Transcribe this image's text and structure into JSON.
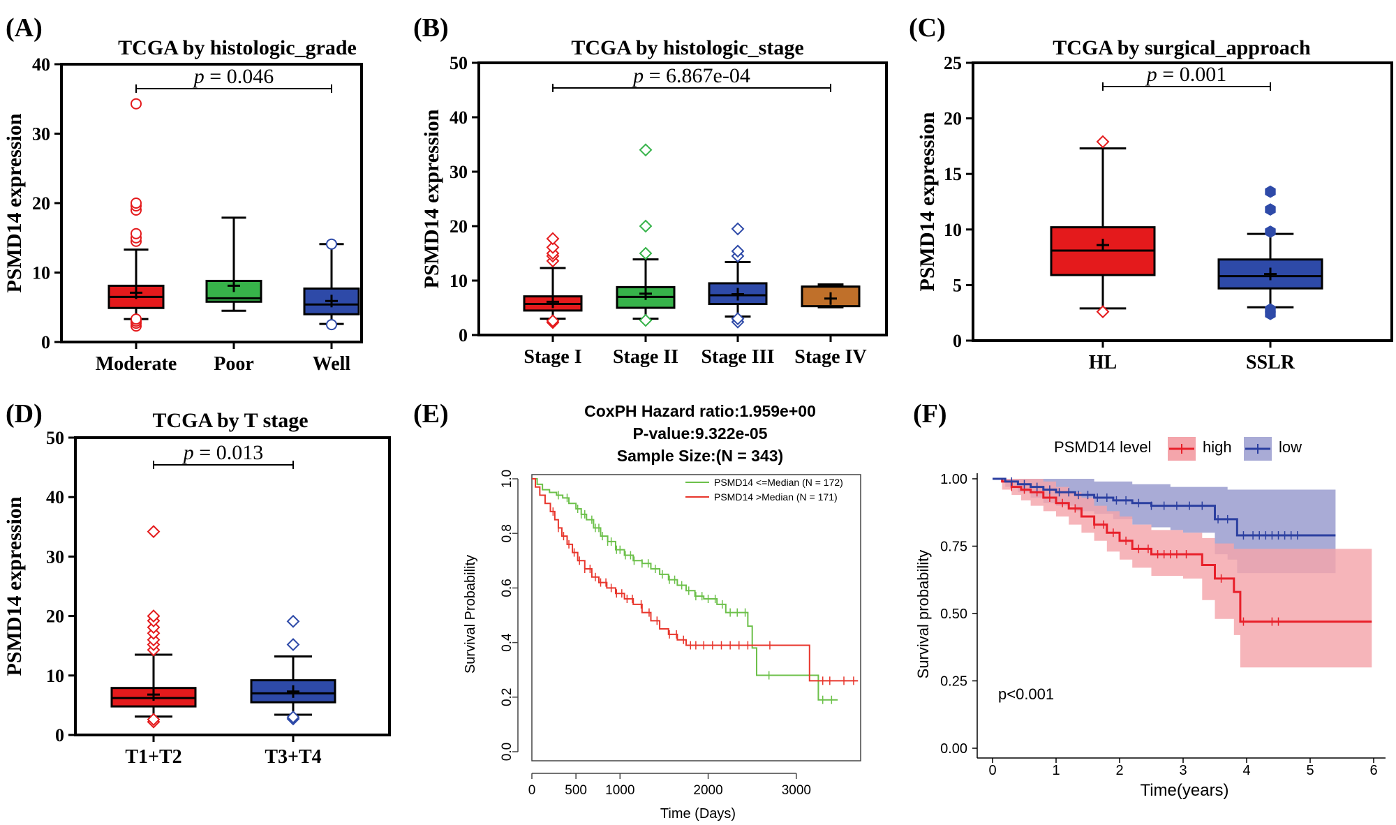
{
  "panel_labels": {
    "A": "(A)",
    "B": "(B)",
    "C": "(C)",
    "D": "(D)",
    "E": "(E)",
    "F": "(F)"
  },
  "colors": {
    "red": "#e41a1c",
    "green": "#37b34a",
    "blue": "#2e4aa8",
    "orange": "#c0702a",
    "km_green": "#6cc04a",
    "km_red": "#e8362c",
    "f_red": "#e8202a",
    "f_blue": "#2b3fa0",
    "f_red_band": "#f4a5ab",
    "f_blue_band": "#a9abd6",
    "f_overlap": "#9a72b4"
  },
  "chart_data": [
    {
      "id": "A",
      "type": "box",
      "title": "TCGA by histologic_grade",
      "ylabel": "PSMD14 expression",
      "ylim": [
        0,
        40
      ],
      "yticks": [
        0,
        10,
        20,
        30,
        40
      ],
      "pvalue_p": "p",
      "pvalue_eq": "=",
      "pvalue": "0.046",
      "bracket": [
        0,
        2
      ],
      "categories": [
        "Moderate",
        "Poor",
        "Well"
      ],
      "boxes": [
        {
          "name": "Moderate",
          "color": "red",
          "wlo": 3.3,
          "q1": 4.9,
          "median": 6.5,
          "q3": 8.1,
          "whi": 13.3,
          "mean": 7.1,
          "outliers": [
            2.3,
            2.7,
            3.0,
            3.3,
            14.5,
            15.0,
            15.6,
            19.0,
            19.6,
            20.0,
            34.3
          ],
          "marker": "circle"
        },
        {
          "name": "Poor",
          "color": "green",
          "wlo": 4.5,
          "q1": 5.8,
          "median": 6.3,
          "q3": 8.8,
          "whi": 17.9,
          "mean": 8.1,
          "outliers": [],
          "marker": "circle"
        },
        {
          "name": "Well",
          "color": "blue",
          "wlo": 2.6,
          "q1": 4.0,
          "median": 5.4,
          "q3": 7.7,
          "whi": 14.1,
          "mean": 5.9,
          "outliers": [
            2.5,
            14.1
          ],
          "marker": "circle"
        }
      ]
    },
    {
      "id": "B",
      "type": "box",
      "title": "TCGA by histologic_stage",
      "ylabel": "PSMD14 expression",
      "ylim": [
        0,
        50
      ],
      "yticks": [
        0,
        10,
        20,
        30,
        40,
        50
      ],
      "pvalue_p": "p",
      "pvalue_eq": "=",
      "pvalue": "6.867e-04",
      "bracket": [
        0,
        3
      ],
      "categories": [
        "Stage I",
        "Stage II",
        "Stage III",
        "Stage IV"
      ],
      "boxes": [
        {
          "name": "Stage I",
          "color": "red",
          "wlo": 3.0,
          "q1": 4.5,
          "median": 5.7,
          "q3": 7.1,
          "whi": 12.3,
          "mean": 6.1,
          "outliers": [
            2.3,
            2.6,
            13.6,
            14.5,
            15.0,
            16.1,
            17.7
          ],
          "marker": "diamond"
        },
        {
          "name": "Stage II",
          "color": "green",
          "wlo": 3.0,
          "q1": 5.0,
          "median": 7.0,
          "q3": 8.8,
          "whi": 13.9,
          "mean": 7.6,
          "outliers": [
            2.7,
            15.0,
            20.0,
            34.0
          ],
          "marker": "diamond"
        },
        {
          "name": "Stage III",
          "color": "blue",
          "wlo": 3.4,
          "q1": 5.7,
          "median": 7.3,
          "q3": 9.5,
          "whi": 13.4,
          "mean": 7.5,
          "outliers": [
            2.4,
            3.0,
            14.5,
            15.4,
            19.5
          ],
          "marker": "diamond"
        },
        {
          "name": "Stage IV",
          "color": "orange",
          "wlo": 5.1,
          "q1": 5.3,
          "median": 8.9,
          "q3": 8.9,
          "whi": 9.3,
          "mean": 6.7,
          "outliers": [],
          "marker": "diamond"
        }
      ]
    },
    {
      "id": "C",
      "type": "box",
      "title": "TCGA by surgical_approach",
      "ylabel": "PSMD14 expression",
      "ylim": [
        0,
        25
      ],
      "yticks": [
        0,
        5,
        10,
        15,
        20,
        25
      ],
      "pvalue_p": "p",
      "pvalue_eq": "=",
      "pvalue": "0.001",
      "bracket": [
        0,
        1
      ],
      "categories": [
        "HL",
        "SSLR"
      ],
      "boxes": [
        {
          "name": "HL",
          "color": "red",
          "wlo": 2.9,
          "q1": 5.9,
          "median": 8.1,
          "q3": 10.2,
          "whi": 17.3,
          "mean": 8.6,
          "outliers": [
            2.6,
            17.9
          ],
          "marker": "diamond"
        },
        {
          "name": "SSLR",
          "color": "blue",
          "wlo": 3.0,
          "q1": 4.7,
          "median": 5.8,
          "q3": 7.3,
          "whi": 9.6,
          "mean": 6.0,
          "outliers": [
            2.4,
            2.8,
            9.8,
            11.8,
            13.4
          ],
          "marker": "hex"
        }
      ]
    },
    {
      "id": "D",
      "type": "box",
      "title": "TCGA by T stage",
      "ylabel": "PSMD14 expression",
      "ylim": [
        0,
        50
      ],
      "yticks": [
        0,
        10,
        20,
        30,
        40,
        50
      ],
      "pvalue_p": "p",
      "pvalue_eq": "=",
      "pvalue": "0.013",
      "bracket": [
        0,
        1
      ],
      "categories": [
        "T1+T2",
        "T3+T4"
      ],
      "boxes": [
        {
          "name": "T1+T2",
          "color": "red",
          "wlo": 3.1,
          "q1": 4.8,
          "median": 6.2,
          "q3": 7.9,
          "whi": 13.5,
          "mean": 6.8,
          "outliers": [
            2.2,
            2.6,
            14.3,
            15.2,
            16.0,
            17.1,
            18.1,
            19.2,
            20.0,
            34.2
          ],
          "marker": "diamond"
        },
        {
          "name": "T3+T4",
          "color": "blue",
          "wlo": 3.4,
          "q1": 5.5,
          "median": 7.0,
          "q3": 9.2,
          "whi": 13.2,
          "mean": 7.3,
          "outliers": [
            2.7,
            3.0,
            15.2,
            19.1
          ],
          "marker": "diamond"
        }
      ]
    },
    {
      "id": "E",
      "type": "line",
      "subtype": "kaplan-meier",
      "title_lines": [
        "CoxPH Hazard ratio:1.959e+00",
        "P-value:9.322e-05",
        "Sample Size:(N = 343)"
      ],
      "xlabel": "Time (Days)",
      "ylabel": "Survival Probability",
      "xlim": [
        0,
        3700
      ],
      "ylim": [
        0,
        1
      ],
      "xticks": [
        0,
        500,
        1000,
        2000,
        3000
      ],
      "yticks": [
        "0.0",
        "0.2",
        "0.4",
        "0.6",
        "0.8",
        "1.0"
      ],
      "legend": [
        "PSMD14 <=Median (N = 172)",
        "PSMD14 >Median (N = 171)"
      ],
      "series": [
        {
          "name": "PSMD14 <=Median (N = 172)",
          "color": "km_green",
          "x": [
            0,
            60,
            120,
            200,
            280,
            350,
            420,
            500,
            560,
            620,
            700,
            780,
            860,
            950,
            1050,
            1150,
            1250,
            1350,
            1450,
            1550,
            1650,
            1750,
            1850,
            1950,
            2100,
            2200,
            2450,
            2500,
            2550,
            3200,
            3250,
            3470
          ],
          "y": [
            1.0,
            0.98,
            0.96,
            0.95,
            0.94,
            0.93,
            0.91,
            0.89,
            0.87,
            0.85,
            0.82,
            0.79,
            0.77,
            0.74,
            0.72,
            0.7,
            0.69,
            0.67,
            0.65,
            0.63,
            0.61,
            0.59,
            0.57,
            0.56,
            0.54,
            0.51,
            0.46,
            0.38,
            0.28,
            0.28,
            0.19,
            0.19
          ],
          "censor_x": [
            300,
            400,
            520,
            560,
            600,
            680,
            720,
            760,
            800,
            860,
            900,
            960,
            1000,
            1060,
            1120,
            1160,
            1250,
            1320,
            1400,
            1480,
            1560,
            1620,
            1700,
            1780,
            1860,
            1930,
            2000,
            2080,
            2160,
            2250,
            2330,
            2420,
            2690,
            3300,
            3400
          ]
        },
        {
          "name": "PSMD14 >Median (N = 171)",
          "color": "km_red",
          "x": [
            0,
            40,
            90,
            150,
            210,
            260,
            300,
            340,
            400,
            460,
            520,
            600,
            680,
            760,
            850,
            950,
            1050,
            1150,
            1250,
            1350,
            1450,
            1550,
            1650,
            1750,
            2000,
            2500,
            2600,
            3100,
            3150,
            3700
          ],
          "y": [
            1.0,
            0.97,
            0.94,
            0.91,
            0.88,
            0.85,
            0.82,
            0.79,
            0.76,
            0.73,
            0.7,
            0.67,
            0.64,
            0.62,
            0.6,
            0.58,
            0.56,
            0.54,
            0.51,
            0.48,
            0.45,
            0.43,
            0.41,
            0.39,
            0.39,
            0.39,
            0.39,
            0.39,
            0.26,
            0.26
          ],
          "censor_x": [
            240,
            300,
            360,
            420,
            480,
            540,
            600,
            660,
            720,
            780,
            840,
            900,
            960,
            1020,
            1080,
            1140,
            1240,
            1330,
            1420,
            1560,
            1640,
            1720,
            1800,
            1860,
            1950,
            2050,
            2150,
            2250,
            2350,
            2450,
            2700,
            3300,
            3380,
            3540,
            3650
          ]
        }
      ]
    },
    {
      "id": "F",
      "type": "area",
      "subtype": "kaplan-meier-ci",
      "legend_title": "PSMD14 level",
      "legend": [
        "high",
        "low"
      ],
      "xlabel": "Time(years)",
      "ylabel": "Survival probability",
      "xlim": [
        0,
        6
      ],
      "ylim": [
        0,
        1
      ],
      "xticks": [
        0,
        1,
        2,
        3,
        4,
        5,
        6
      ],
      "yticks": [
        "0.00",
        "0.25",
        "0.50",
        "0.75",
        "1.00"
      ],
      "annotation": "p<0.001",
      "series": [
        {
          "name": "high",
          "color": "f_red",
          "band": "f_red_band",
          "x": [
            0,
            0.15,
            0.3,
            0.45,
            0.6,
            0.8,
            1.0,
            1.2,
            1.4,
            1.6,
            1.8,
            2.0,
            2.2,
            2.5,
            3.0,
            3.3,
            3.5,
            3.8,
            3.9,
            5.97
          ],
          "y": [
            1.0,
            0.99,
            0.97,
            0.96,
            0.95,
            0.93,
            0.91,
            0.89,
            0.86,
            0.83,
            0.8,
            0.77,
            0.74,
            0.72,
            0.72,
            0.68,
            0.63,
            0.58,
            0.47,
            0.47
          ],
          "lo": [
            1.0,
            0.96,
            0.94,
            0.92,
            0.9,
            0.88,
            0.86,
            0.83,
            0.8,
            0.77,
            0.73,
            0.7,
            0.67,
            0.64,
            0.63,
            0.55,
            0.48,
            0.42,
            0.3,
            0.3
          ],
          "hi": [
            1.0,
            1.0,
            1.0,
            1.0,
            1.0,
            0.99,
            0.97,
            0.95,
            0.93,
            0.9,
            0.88,
            0.86,
            0.83,
            0.81,
            0.8,
            0.78,
            0.76,
            0.74,
            0.74,
            0.74
          ],
          "censor_x": [
            0.3,
            0.5,
            0.7,
            0.9,
            1.1,
            1.3,
            1.6,
            1.75,
            1.9,
            2.1,
            2.3,
            2.45,
            2.6,
            2.7,
            2.8,
            2.9,
            3.05,
            3.6,
            3.95,
            4.4,
            4.5
          ]
        },
        {
          "name": "low",
          "color": "f_blue",
          "band": "f_blue_band",
          "x": [
            0,
            0.2,
            0.4,
            0.6,
            0.8,
            1.0,
            1.3,
            1.6,
            1.9,
            2.2,
            2.5,
            2.8,
            3.0,
            3.5,
            3.7,
            3.85,
            5.4
          ],
          "y": [
            1.0,
            0.99,
            0.98,
            0.97,
            0.96,
            0.95,
            0.94,
            0.93,
            0.92,
            0.91,
            0.9,
            0.9,
            0.9,
            0.85,
            0.85,
            0.79,
            0.79
          ],
          "lo": [
            1.0,
            0.97,
            0.95,
            0.93,
            0.91,
            0.9,
            0.88,
            0.87,
            0.85,
            0.83,
            0.82,
            0.81,
            0.8,
            0.72,
            0.7,
            0.65,
            0.65
          ],
          "hi": [
            1.0,
            1.0,
            1.0,
            1.0,
            1.0,
            1.0,
            1.0,
            0.99,
            0.99,
            0.98,
            0.98,
            0.97,
            0.97,
            0.97,
            0.96,
            0.96,
            0.96
          ],
          "censor_x": [
            0.3,
            0.5,
            0.7,
            0.9,
            1.05,
            1.2,
            1.35,
            1.5,
            1.65,
            1.8,
            1.95,
            2.1,
            2.3,
            2.5,
            2.7,
            2.9,
            3.1,
            3.3,
            3.55,
            3.7,
            3.95,
            4.1,
            4.2,
            4.3,
            4.4,
            4.5,
            4.6,
            4.7,
            4.8
          ]
        }
      ]
    }
  ]
}
